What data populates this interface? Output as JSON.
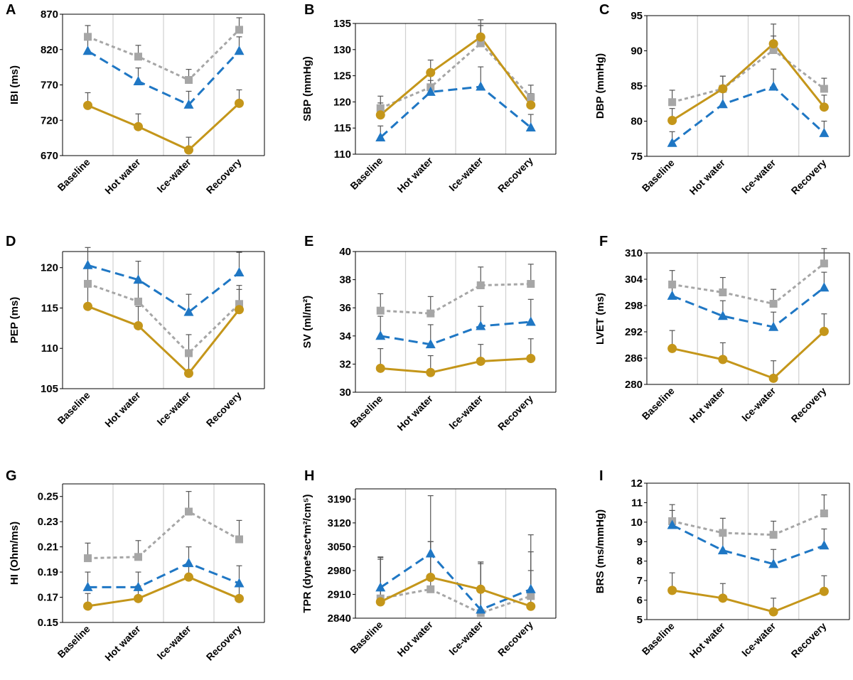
{
  "chart_data": [
    {
      "type": "line",
      "panel": "A",
      "ylabel": "IBI (ms)",
      "categories": [
        "Baseline",
        "Hot water",
        "Ice-water",
        "Recovery"
      ],
      "ylim": [
        670,
        870
      ],
      "yticks": [
        "670",
        "720",
        "770",
        "820",
        "870"
      ],
      "series": [
        {
          "name": "gray",
          "values": [
            838,
            810,
            777,
            848
          ],
          "err": [
            16,
            16,
            15,
            17
          ]
        },
        {
          "name": "blue",
          "values": [
            818,
            775,
            742,
            818
          ],
          "err": [
            18,
            19,
            19,
            20
          ]
        },
        {
          "name": "gold",
          "values": [
            741,
            711,
            678,
            744
          ],
          "err": [
            18,
            18,
            18,
            19
          ]
        }
      ]
    },
    {
      "type": "line",
      "panel": "B",
      "ylabel": "SBP (mmHg)",
      "categories": [
        "Baseline",
        "Hot water",
        "Ice-water",
        "Recovery"
      ],
      "ylim": [
        110,
        135
      ],
      "yticks": [
        "110",
        "115",
        "120",
        "125",
        "130",
        "135"
      ],
      "series": [
        {
          "name": "gray",
          "values": [
            118.8,
            122.8,
            131.2,
            120.9
          ],
          "err": [
            2.3,
            2.4,
            4.5,
            2.3
          ]
        },
        {
          "name": "blue",
          "values": [
            113.2,
            121.9,
            122.9,
            115.1
          ],
          "err": [
            2.2,
            2.2,
            3.8,
            2.5
          ]
        },
        {
          "name": "gold",
          "values": [
            117.5,
            125.6,
            132.4,
            119.4
          ],
          "err": [
            2.3,
            2.4,
            2.2,
            2.2
          ]
        }
      ]
    },
    {
      "type": "line",
      "panel": "C",
      "ylabel": "DBP (mmHg)",
      "categories": [
        "Baseline",
        "Hot water",
        "Ice-water",
        "Recovery"
      ],
      "ylim": [
        75,
        95
      ],
      "yticks": [
        "75",
        "80",
        "85",
        "90",
        "95"
      ],
      "series": [
        {
          "name": "gray",
          "values": [
            82.7,
            84.6,
            90.1,
            84.6
          ],
          "err": [
            1.7,
            1.8,
            2.0,
            1.5
          ]
        },
        {
          "name": "blue",
          "values": [
            76.9,
            82.4,
            84.9,
            78.3
          ],
          "err": [
            1.6,
            1.7,
            2.5,
            1.7
          ]
        },
        {
          "name": "gold",
          "values": [
            80.1,
            84.6,
            91.0,
            82.0
          ],
          "err": [
            1.7,
            1.8,
            2.8,
            1.7
          ]
        }
      ]
    },
    {
      "type": "line",
      "panel": "D",
      "ylabel": "PEP (ms)",
      "categories": [
        "Baseline",
        "Hot water",
        "Ice-water",
        "Recovery"
      ],
      "ylim": [
        105,
        122
      ],
      "yticks": [
        "105",
        "110",
        "115",
        "120"
      ],
      "series": [
        {
          "name": "gray",
          "values": [
            118.0,
            115.8,
            109.4,
            115.5
          ],
          "err": [
            2.2,
            2.4,
            2.3,
            2.3
          ]
        },
        {
          "name": "blue",
          "values": [
            120.3,
            118.5,
            114.5,
            119.4
          ],
          "err": [
            2.2,
            2.3,
            2.2,
            2.5
          ]
        },
        {
          "name": "gold",
          "values": [
            115.2,
            112.8,
            106.9,
            114.8
          ],
          "err": [
            2.4,
            2.4,
            2.3,
            2.5
          ]
        }
      ]
    },
    {
      "type": "line",
      "panel": "E",
      "ylabel": "SV (ml/m²)",
      "categories": [
        "Baseline",
        "Hot water",
        "Ice-water",
        "Recovery"
      ],
      "ylim": [
        30,
        40
      ],
      "yticks": [
        "30",
        "32",
        "34",
        "36",
        "38",
        "40"
      ],
      "series": [
        {
          "name": "gray",
          "values": [
            35.8,
            35.6,
            37.6,
            37.7
          ],
          "err": [
            1.2,
            1.2,
            1.3,
            1.4
          ]
        },
        {
          "name": "blue",
          "values": [
            34.0,
            33.4,
            34.7,
            35.0
          ],
          "err": [
            1.4,
            1.4,
            1.4,
            1.6
          ]
        },
        {
          "name": "gold",
          "values": [
            31.7,
            31.4,
            32.2,
            32.4
          ],
          "err": [
            1.4,
            1.2,
            1.2,
            1.4
          ]
        }
      ]
    },
    {
      "type": "line",
      "panel": "F",
      "ylabel": "LVET (ms)",
      "categories": [
        "Baseline",
        "Hot water",
        "Ice-water",
        "Recovery"
      ],
      "ylim": [
        280,
        310
      ],
      "yticks": [
        "280",
        "286",
        "292",
        "298",
        "304",
        "310"
      ],
      "series": [
        {
          "name": "gray",
          "values": [
            302.8,
            301.0,
            298.4,
            307.6
          ],
          "err": [
            3.2,
            3.4,
            3.3,
            3.4
          ]
        },
        {
          "name": "blue",
          "values": [
            300.2,
            295.6,
            293.1,
            302.1
          ],
          "err": [
            3.3,
            3.5,
            3.4,
            3.5
          ]
        },
        {
          "name": "gold",
          "values": [
            288.2,
            285.7,
            281.4,
            292.1
          ],
          "err": [
            4.1,
            3.8,
            4.0,
            4.0
          ]
        }
      ]
    },
    {
      "type": "line",
      "panel": "G",
      "ylabel": "HI (Ohm/ms)",
      "categories": [
        "Baseline",
        "Hot water",
        "Ice-water",
        "Recovery"
      ],
      "ylim": [
        0.15,
        0.26
      ],
      "yticks": [
        "0.15",
        "0.17",
        "0.19",
        "0.21",
        "0.23",
        "0.25"
      ],
      "series": [
        {
          "name": "gray",
          "values": [
            0.201,
            0.202,
            0.238,
            0.216
          ],
          "err": [
            0.012,
            0.013,
            0.016,
            0.015
          ]
        },
        {
          "name": "blue",
          "values": [
            0.178,
            0.178,
            0.197,
            0.181
          ],
          "err": [
            0.012,
            0.012,
            0.013,
            0.014
          ]
        },
        {
          "name": "gold",
          "values": [
            0.163,
            0.169,
            0.186,
            0.169
          ],
          "err": [
            0.01,
            0.01,
            0.011,
            0.011
          ]
        }
      ]
    },
    {
      "type": "line",
      "panel": "H",
      "ylabel": "TPR (dyne*sec*m²/cm⁵)",
      "categories": [
        "Baseline",
        "Hot water",
        "Ice-water",
        "Recovery"
      ],
      "ylim": [
        2840,
        3220
      ],
      "yticks": [
        "2840",
        "2910",
        "2980",
        "3050",
        "3120",
        "3190"
      ],
      "series": [
        {
          "name": "gray",
          "values": [
            2898,
            2925,
            2855,
            2905
          ],
          "err": [
            120,
            140,
            145,
            130
          ]
        },
        {
          "name": "blue",
          "values": [
            2930,
            3030,
            2865,
            2925
          ],
          "err": [
            90,
            170,
            140,
            160
          ]
        },
        {
          "name": "gold",
          "values": [
            2888,
            2960,
            2925,
            2875
          ],
          "err": [
            125,
            105,
            80,
            105
          ]
        }
      ]
    },
    {
      "type": "line",
      "panel": "I",
      "ylabel": "BRS (ms/mmHg)",
      "categories": [
        "Baseline",
        "Hot water",
        "Ice-water",
        "Recovery"
      ],
      "ylim": [
        5,
        12
      ],
      "yticks": [
        "5",
        "6",
        "7",
        "8",
        "9",
        "10",
        "11",
        "12"
      ],
      "series": [
        {
          "name": "gray",
          "values": [
            10.05,
            9.45,
            9.35,
            10.45
          ],
          "err": [
            0.85,
            0.75,
            0.7,
            0.95
          ]
        },
        {
          "name": "blue",
          "values": [
            9.85,
            8.55,
            7.85,
            8.8
          ],
          "err": [
            0.75,
            0.8,
            0.75,
            0.85
          ]
        },
        {
          "name": "gold",
          "values": [
            6.5,
            6.1,
            5.4,
            6.45
          ],
          "err": [
            0.9,
            0.75,
            0.7,
            0.8
          ]
        }
      ]
    }
  ],
  "colors": {
    "gray": "#a6a6a6",
    "blue": "#1f77c4",
    "gold": "#c4961a",
    "axis": "#000000",
    "divider": "#d0d0d0",
    "error": "#555555"
  }
}
